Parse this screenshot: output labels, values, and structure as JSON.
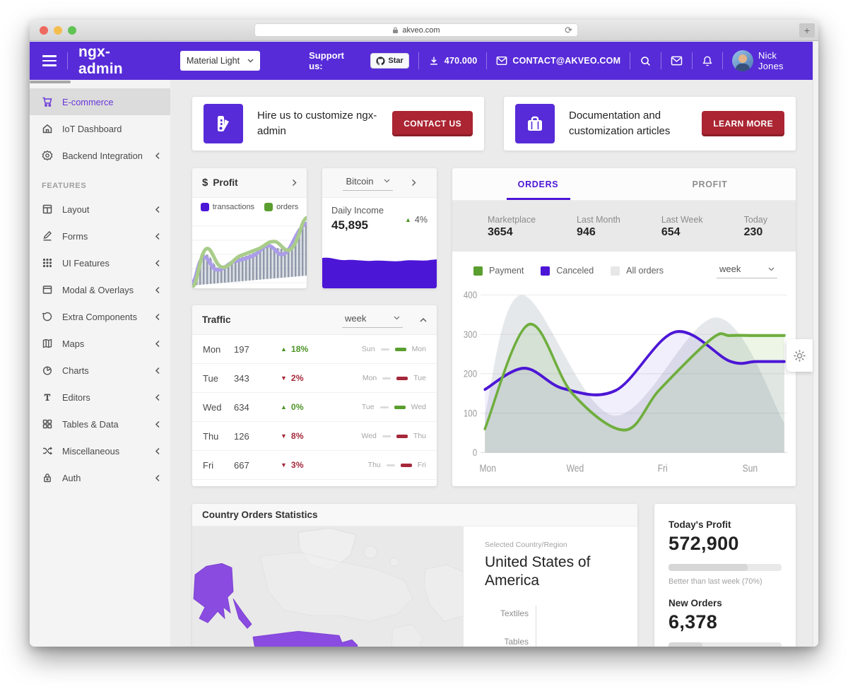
{
  "colors": {
    "primary": "#572bd8",
    "chart_purple": "#4c16d6",
    "green": "#5a9e2f",
    "red_button": "#ab2533",
    "delta_red": "#a5283a",
    "map_purple": "#8a4be0"
  },
  "browser": {
    "url": "akveo.com",
    "new_tab": "+",
    "reload": "⟳"
  },
  "header": {
    "logo": "ngx-admin",
    "theme_select": "Material Light",
    "support_label": "Support us:",
    "star_label": "Star",
    "downloads": "470.000",
    "contact": "CONTACT@AKVEO.COM",
    "user": "Nick Jones"
  },
  "sidebar": {
    "items": [
      {
        "label": "E-commerce",
        "icon": "cart",
        "selected": true
      },
      {
        "label": "IoT Dashboard",
        "icon": "home"
      },
      {
        "label": "Backend Integration",
        "icon": "cog",
        "expandable": true
      },
      {
        "label": "FEATURES",
        "section": true
      },
      {
        "label": "Layout",
        "icon": "layout",
        "expandable": true
      },
      {
        "label": "Forms",
        "icon": "pencil",
        "expandable": true
      },
      {
        "label": "UI Features",
        "icon": "keypad",
        "expandable": true
      },
      {
        "label": "Modal & Overlays",
        "icon": "window",
        "expandable": true
      },
      {
        "label": "Extra Components",
        "icon": "message",
        "expandable": true
      },
      {
        "label": "Maps",
        "icon": "map",
        "expandable": true
      },
      {
        "label": "Charts",
        "icon": "pie",
        "expandable": true
      },
      {
        "label": "Editors",
        "icon": "text",
        "expandable": true
      },
      {
        "label": "Tables & Data",
        "icon": "grid",
        "expandable": true
      },
      {
        "label": "Miscellaneous",
        "icon": "shuffle",
        "expandable": true
      },
      {
        "label": "Auth",
        "icon": "lock",
        "expandable": true
      }
    ]
  },
  "banners": [
    {
      "text": "Hire us to customize ngx-admin",
      "button": "CONTACT US",
      "icon": "palette"
    },
    {
      "text": "Documentation and customization articles",
      "button": "LEARN MORE",
      "icon": "briefcase"
    }
  ],
  "profit_card": {
    "currency": "$",
    "title": "Profit",
    "legend": [
      {
        "label": "transactions",
        "color": "#4c16d6"
      },
      {
        "label": "orders",
        "color": "#5a9e2f"
      }
    ]
  },
  "bitcoin_card": {
    "select": "Bitcoin",
    "label": "Daily Income",
    "value": "45,895",
    "delta": "4%",
    "delta_dir": "up"
  },
  "orders_card": {
    "tabs": [
      {
        "label": "ORDERS",
        "active": true
      },
      {
        "label": "PROFIT",
        "active": false
      }
    ],
    "stats": [
      {
        "label": "Marketplace",
        "value": "3654"
      },
      {
        "label": "Last Month",
        "value": "946"
      },
      {
        "label": "Last Week",
        "value": "654"
      },
      {
        "label": "Today",
        "value": "230"
      }
    ],
    "legend": [
      {
        "label": "Payment",
        "color": "#5a9e2f"
      },
      {
        "label": "Canceled",
        "color": "#4c16d6"
      },
      {
        "label": "All orders",
        "color": "#e4e4e4"
      }
    ],
    "period": "week"
  },
  "chart_data": {
    "type": "line",
    "title": "Orders week chart",
    "ymax": 400,
    "yticks": [
      0,
      100,
      200,
      300,
      400
    ],
    "xticks": [
      "Mon",
      "Wed",
      "Fri",
      "Sun"
    ],
    "xtick_days": [
      0,
      2,
      4,
      6
    ],
    "series": [
      {
        "name": "Payment",
        "stroke": "#6fae3e",
        "fill": "rgba(111,174,62,0.13)",
        "width": 3.4,
        "points": [
          [
            0,
            60
          ],
          [
            1,
            325
          ],
          [
            2,
            150
          ],
          [
            3.2,
            57
          ],
          [
            4,
            160
          ],
          [
            5.2,
            290
          ],
          [
            5.6,
            297
          ],
          [
            6.2,
            297
          ],
          [
            6.85,
            297
          ]
        ]
      },
      {
        "name": "Canceled",
        "stroke": "#4c16d6",
        "fill": "rgba(76,22,214,0.07)",
        "width": 3.4,
        "points": [
          [
            0,
            160
          ],
          [
            0.9,
            214
          ],
          [
            1.8,
            162
          ],
          [
            3,
            158
          ],
          [
            4.35,
            306
          ],
          [
            5.6,
            232
          ],
          [
            6.2,
            231
          ],
          [
            6.85,
            231
          ]
        ]
      },
      {
        "name": "All orders",
        "stroke": "none",
        "fill": "rgba(148,158,170,0.24)",
        "width": 0,
        "points": [
          [
            0,
            97
          ],
          [
            0.85,
            400
          ],
          [
            2.95,
            94
          ],
          [
            5.3,
            343
          ],
          [
            6.85,
            75
          ]
        ]
      }
    ],
    "legend_position": "top"
  },
  "traffic_card": {
    "title": "Traffic",
    "period": "week",
    "rows": [
      {
        "day": "Mon",
        "value": "197",
        "delta": "18%",
        "dir": "up",
        "from": "Sun",
        "to": "Mon"
      },
      {
        "day": "Tue",
        "value": "343",
        "delta": "2%",
        "dir": "down",
        "from": "Mon",
        "to": "Tue"
      },
      {
        "day": "Wed",
        "value": "634",
        "delta": "0%",
        "dir": "up",
        "from": "Tue",
        "to": "Wed"
      },
      {
        "day": "Thu",
        "value": "126",
        "delta": "8%",
        "dir": "down",
        "from": "Wed",
        "to": "Thu"
      },
      {
        "day": "Fri",
        "value": "667",
        "delta": "3%",
        "dir": "down",
        "from": "Thu",
        "to": "Fri"
      }
    ]
  },
  "country_card": {
    "title": "Country Orders Statistics",
    "selected_label": "Selected Country/Region",
    "country": "United States of America",
    "categories": [
      "Textiles",
      "Tables"
    ]
  },
  "side_card": {
    "today_label": "Today's Profit",
    "today_value": "572,900",
    "today_progress": 70,
    "today_note": "Better than last week (70%)",
    "orders_label": "New Orders",
    "orders_value": "6,378",
    "orders_progress": 30
  }
}
